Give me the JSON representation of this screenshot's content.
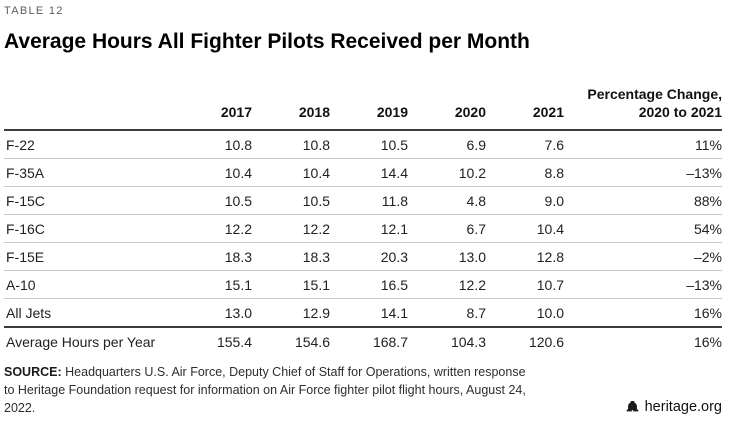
{
  "header": {
    "eyebrow": "TABLE 12",
    "title": "Average Hours All Fighter Pilots Received per Month"
  },
  "table": {
    "year_columns": [
      "2017",
      "2018",
      "2019",
      "2020",
      "2021"
    ],
    "pct_header_line1": "Percentage Change,",
    "pct_header_line2": "2020 to 2021",
    "rows": [
      {
        "label": "F-22",
        "values": [
          "10.8",
          "10.8",
          "10.5",
          "6.9",
          "7.6"
        ],
        "pct": "11%"
      },
      {
        "label": "F-35A",
        "values": [
          "10.4",
          "10.4",
          "14.4",
          "10.2",
          "8.8"
        ],
        "pct": "–13%"
      },
      {
        "label": "F-15C",
        "values": [
          "10.5",
          "10.5",
          "11.8",
          "4.8",
          "9.0"
        ],
        "pct": "88%"
      },
      {
        "label": "F-16C",
        "values": [
          "12.2",
          "12.2",
          "12.1",
          "6.7",
          "10.4"
        ],
        "pct": "54%"
      },
      {
        "label": "F-15E",
        "values": [
          "18.3",
          "18.3",
          "20.3",
          "13.0",
          "12.8"
        ],
        "pct": "–2%"
      },
      {
        "label": "A-10",
        "values": [
          "15.1",
          "15.1",
          "16.5",
          "12.2",
          "10.7"
        ],
        "pct": "–13%"
      },
      {
        "label": "All Jets",
        "values": [
          "13.0",
          "12.9",
          "14.1",
          "8.7",
          "10.0"
        ],
        "pct": "16%"
      },
      {
        "label": "Average Hours per Year",
        "values": [
          "155.4",
          "154.6",
          "168.7",
          "104.3",
          "120.6"
        ],
        "pct": "16%"
      }
    ]
  },
  "footer": {
    "source_label": "SOURCE:",
    "source_text": "Headquarters U.S. Air Force, Deputy Chief of Staff for Operations, written response to Heritage Foundation request for information on Air Force fighter pilot flight hours, August 24, 2022.",
    "brand": "heritage.org"
  },
  "colors": {
    "text": "#1a1a1a",
    "eyebrow_gray": "#5c5c5c",
    "dark_rule": "#3d3d3d",
    "light_rule": "#c9c9c9"
  },
  "chart_data": {
    "type": "table",
    "title": "Average Hours All Fighter Pilots Received per Month",
    "columns": [
      "",
      "2017",
      "2018",
      "2019",
      "2020",
      "2021",
      "Percentage Change, 2020 to 2021"
    ],
    "rows": [
      [
        "F-22",
        10.8,
        10.8,
        10.5,
        6.9,
        7.6,
        "11%"
      ],
      [
        "F-35A",
        10.4,
        10.4,
        14.4,
        10.2,
        8.8,
        "-13%"
      ],
      [
        "F-15C",
        10.5,
        10.5,
        11.8,
        4.8,
        9.0,
        "88%"
      ],
      [
        "F-16C",
        12.2,
        12.2,
        12.1,
        6.7,
        10.4,
        "54%"
      ],
      [
        "F-15E",
        18.3,
        18.3,
        20.3,
        13.0,
        12.8,
        "-2%"
      ],
      [
        "A-10",
        15.1,
        15.1,
        16.5,
        12.2,
        10.7,
        "-13%"
      ],
      [
        "All Jets",
        13.0,
        12.9,
        14.1,
        8.7,
        10.0,
        "16%"
      ],
      [
        "Average Hours per Year",
        155.4,
        154.6,
        168.7,
        104.3,
        120.6,
        "16%"
      ]
    ]
  }
}
